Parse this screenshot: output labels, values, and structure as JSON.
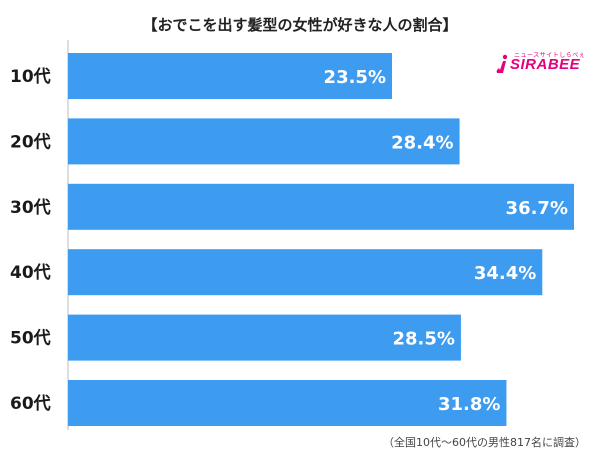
{
  "chart_data": {
    "type": "bar",
    "orientation": "horizontal",
    "title": "【おでこを出す髪型の女性が好きな人の割合】",
    "categories": [
      "10代",
      "20代",
      "30代",
      "40代",
      "50代",
      "60代"
    ],
    "values": [
      23.5,
      28.4,
      36.7,
      34.4,
      28.5,
      31.8
    ],
    "value_labels": [
      "23.5%",
      "28.4%",
      "36.7%",
      "34.4%",
      "28.5%",
      "31.8%"
    ],
    "xlim": [
      0,
      36.7
    ],
    "grid": false,
    "bar_color": "#3d9bf0"
  },
  "logo": {
    "text": "SIRABEE",
    "tagline": "ニュースサイトしらべぇ",
    "color": "#e5007f"
  },
  "source_note": "（全国10代〜60代の男性817名に調査）"
}
